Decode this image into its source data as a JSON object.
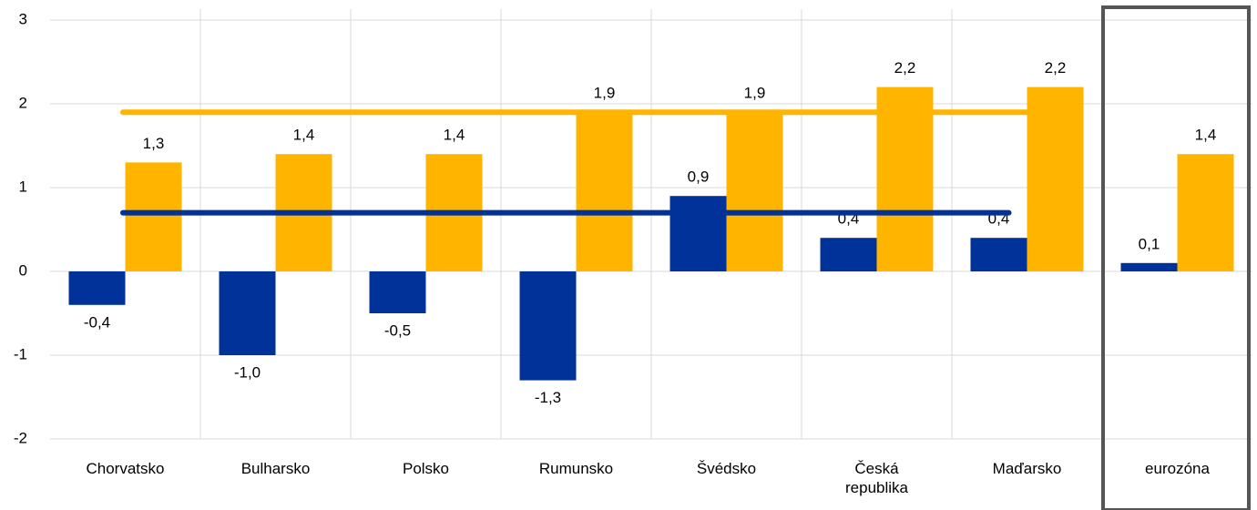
{
  "chart_data": {
    "type": "bar",
    "categories": [
      "Chorvatsko",
      "Bulharsko",
      "Polsko",
      "Rumunsko",
      "Švédsko",
      "Česká republika",
      "Maďarsko",
      "eurozóna"
    ],
    "series": [
      {
        "color": "#003299",
        "values": [
          -0.4,
          -1.0,
          -0.5,
          -1.3,
          0.9,
          0.4,
          0.4,
          0.1
        ],
        "value_labels": [
          "-0,4",
          "-1,0",
          "-0,5",
          "-1,3",
          "0,9",
          "0,4",
          "0,4",
          "0,1"
        ]
      },
      {
        "color": "#ffb400",
        "values": [
          1.3,
          1.4,
          1.4,
          1.9,
          1.9,
          2.2,
          2.2,
          1.4
        ],
        "value_labels": [
          "1,3",
          "1,4",
          "1,4",
          "1,9",
          "1,9",
          "2,2",
          "2,2",
          "1,4"
        ]
      }
    ],
    "lines": [
      {
        "color": "#ffb400",
        "value": 1.9
      },
      {
        "color": "#003299",
        "value": 0.7
      }
    ],
    "ylim": [
      -2,
      3
    ],
    "yticks": [
      -2,
      -1,
      0,
      1,
      2,
      3
    ],
    "grid": true
  }
}
